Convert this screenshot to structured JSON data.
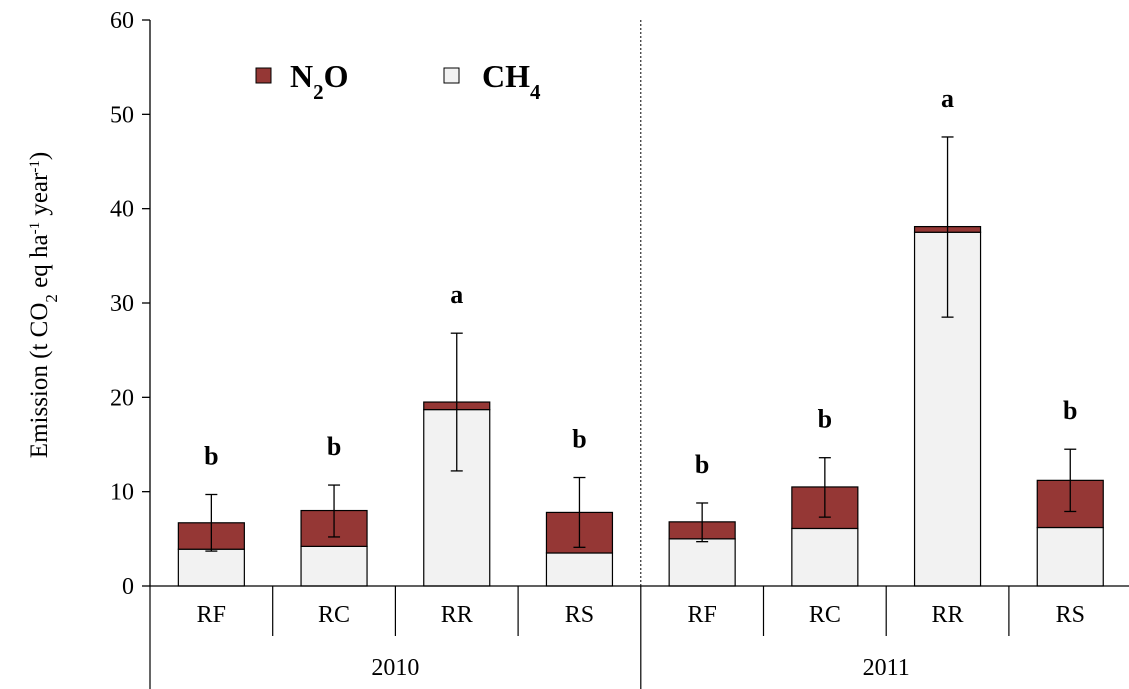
{
  "chart_data": {
    "type": "bar",
    "stacked": true,
    "ylabel": {
      "main": "Emission (t CO",
      "sub1": "2",
      "mid": " eq ha",
      "sup1": "-1",
      "mid2": " year",
      "sup2": "-1",
      "end": ")"
    },
    "ylim": [
      0,
      60
    ],
    "yticks": [
      0,
      10,
      20,
      30,
      40,
      50,
      60
    ],
    "groups": [
      "2010",
      "2011"
    ],
    "categories": [
      "RF",
      "RC",
      "RR",
      "RS",
      "RF",
      "RC",
      "RR",
      "RS"
    ],
    "group_index": [
      0,
      0,
      0,
      0,
      1,
      1,
      1,
      1
    ],
    "series": [
      {
        "name": "CH4",
        "label_main": "CH",
        "label_sub": "4",
        "color": "#f2f2f2",
        "values": [
          3.9,
          4.2,
          18.7,
          3.5,
          5.0,
          6.1,
          37.5,
          6.2
        ]
      },
      {
        "name": "N2O",
        "label_main": "N",
        "label_sub": "2",
        "label_end": "O",
        "color": "#953735",
        "values": [
          2.8,
          3.8,
          0.8,
          4.3,
          1.8,
          4.4,
          0.6,
          5.0
        ]
      }
    ],
    "totals": [
      6.7,
      8.0,
      19.5,
      7.8,
      6.8,
      10.5,
      38.1,
      11.2
    ],
    "error_bars": {
      "upper": [
        9.7,
        10.7,
        26.8,
        11.5,
        8.8,
        13.6,
        47.6,
        14.5
      ],
      "lower": [
        3.7,
        5.2,
        12.2,
        4.1,
        4.7,
        7.3,
        28.5,
        7.9
      ]
    },
    "significance_letters": [
      "b",
      "b",
      "a",
      "b",
      "b",
      "b",
      "a",
      "b"
    ],
    "legend_position": "top-left",
    "grid": false,
    "divider_between_groups": "dotted"
  }
}
